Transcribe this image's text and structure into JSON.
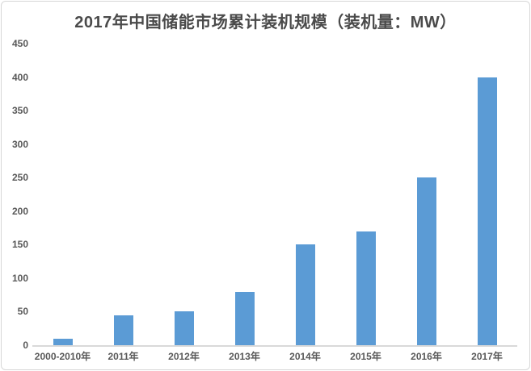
{
  "chart_data": {
    "type": "bar",
    "title": "2017年中国储能市场累计装机规模（装机量：MW）",
    "categories": [
      "2000-2010年",
      "2011年",
      "2012年",
      "2013年",
      "2014年",
      "2015年",
      "2016年",
      "2017年"
    ],
    "values": [
      10,
      45,
      50,
      80,
      150,
      170,
      250,
      400
    ],
    "xlabel": "",
    "ylabel": "",
    "unit": "MW",
    "ylim": [
      0,
      450
    ],
    "yticks": [
      0,
      50,
      100,
      150,
      200,
      250,
      300,
      350,
      400,
      450
    ],
    "grid": false,
    "legend": false,
    "bar_color": "#5b9bd5",
    "axis_line_color": "#d9d9d9",
    "label_color": "#595959",
    "title_color": "#4a4a4a",
    "background_color": "#ffffff"
  }
}
